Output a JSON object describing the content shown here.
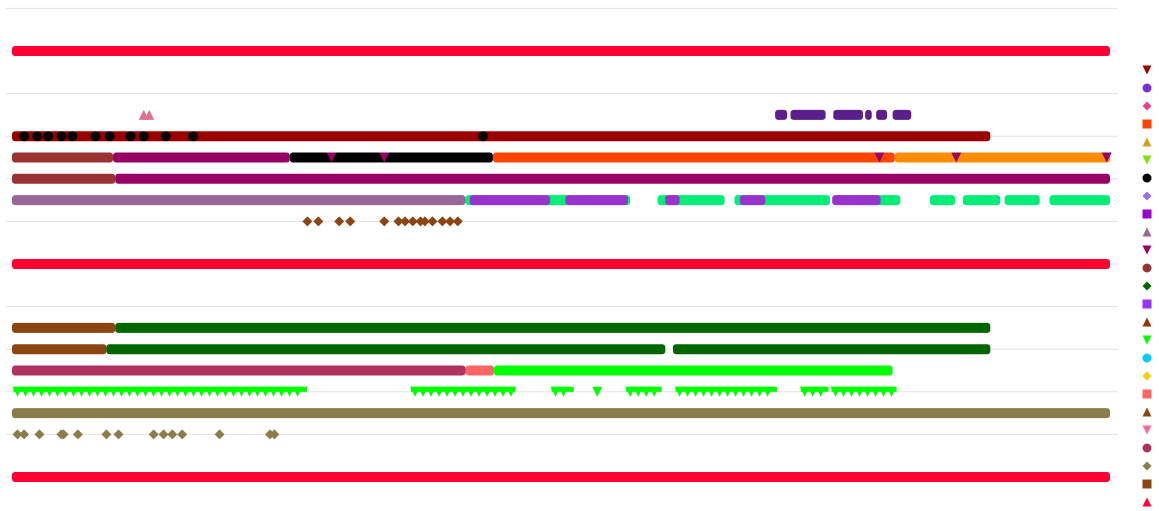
{
  "chart_data": {
    "type": "scatter",
    "title": "",
    "xlabel": "",
    "ylabel": "",
    "xlim": [
      0,
      100
    ],
    "ylim": [
      0,
      11
    ],
    "grid": true,
    "legend_placement": "right",
    "series": [
      {
        "shape": "tri-down",
        "color": "#990000"
      },
      {
        "shape": "circle",
        "color": "#7b2fd6"
      },
      {
        "shape": "diamond",
        "color": "#e8408a"
      },
      {
        "shape": "square",
        "color": "#ff4500"
      },
      {
        "shape": "tri-up",
        "color": "#d4a017"
      },
      {
        "shape": "tri-down",
        "color": "#80e000"
      },
      {
        "shape": "circle",
        "color": "#000000"
      },
      {
        "shape": "diamond",
        "color": "#9a6cf0"
      },
      {
        "shape": "square",
        "color": "#9900cc"
      },
      {
        "shape": "tri-up",
        "color": "#996699"
      },
      {
        "shape": "tri-down",
        "color": "#990066"
      },
      {
        "shape": "circle",
        "color": "#993333"
      },
      {
        "shape": "diamond",
        "color": "#006600"
      },
      {
        "shape": "square",
        "color": "#9933ff"
      },
      {
        "shape": "tri-up",
        "color": "#993300"
      },
      {
        "shape": "tri-down",
        "color": "#00ff00"
      },
      {
        "shape": "circle",
        "color": "#00ccff"
      },
      {
        "shape": "diamond",
        "color": "#ffcc00"
      },
      {
        "shape": "square",
        "color": "#ff6666"
      },
      {
        "shape": "tri-up",
        "color": "#8b4513"
      },
      {
        "shape": "tri-down",
        "color": "#ff6699"
      },
      {
        "shape": "circle",
        "color": "#b03060"
      },
      {
        "shape": "diamond",
        "color": "#8b7d4b"
      },
      {
        "shape": "square",
        "color": "#8b4513"
      },
      {
        "shape": "tri-up",
        "color": "#ff0033"
      }
    ],
    "rows": [
      {
        "y": 10,
        "runs": [
          {
            "s": 24,
            "x0": 0,
            "x1": 100
          }
        ],
        "points": []
      },
      {
        "y": 8.5,
        "runs": [
          {
            "s": 8,
            "x0": 69.5,
            "x1": 70.6,
            "color": "#5b1f8b"
          },
          {
            "s": 8,
            "x0": 70.9,
            "x1": 74.1,
            "color": "#5b1f8b"
          },
          {
            "s": 8,
            "x0": 74.8,
            "x1": 77.5,
            "color": "#5b1f8b"
          },
          {
            "s": 8,
            "x0": 77.7,
            "x1": 78.3,
            "color": "#5b1f8b"
          },
          {
            "s": 8,
            "x0": 78.7,
            "x1": 79.7,
            "color": "#5b1f8b"
          },
          {
            "s": 8,
            "x0": 80.2,
            "x1": 81.9,
            "color": "#5b1f8b"
          }
        ],
        "points": [
          {
            "s": 20,
            "x": 12.0,
            "shape": "tri-up",
            "color": "#e07090"
          },
          {
            "s": 20,
            "x": 12.5,
            "shape": "tri-up",
            "color": "#e07090"
          }
        ]
      },
      {
        "y": 8,
        "runs": [
          {
            "s": 0,
            "x0": 0,
            "x1": 89.1
          }
        ],
        "points": [
          {
            "s": 6,
            "x": 1.1
          },
          {
            "s": 6,
            "x": 2.3
          },
          {
            "s": 6,
            "x": 3.3
          },
          {
            "s": 6,
            "x": 4.5
          },
          {
            "s": 6,
            "x": 5.5
          },
          {
            "s": 6,
            "x": 7.6
          },
          {
            "s": 6,
            "x": 8.9
          },
          {
            "s": 6,
            "x": 10.8
          },
          {
            "s": 6,
            "x": 12.0
          },
          {
            "s": 6,
            "x": 14.0
          },
          {
            "s": 6,
            "x": 16.5
          },
          {
            "s": 6,
            "x": 42.9
          }
        ]
      },
      {
        "y": 7.5,
        "runs": [
          {
            "s": 11,
            "x0": 0,
            "x1": 9.2
          },
          {
            "s": 10,
            "x0": 9.2,
            "x1": 25.3
          },
          {
            "s": 6,
            "x0": 25.3,
            "x1": 43.8
          },
          {
            "s": 3,
            "x0": 43.8,
            "x1": 80.4
          },
          {
            "s": 3,
            "x0": 80.4,
            "x1": 100,
            "color": "#ff8c00"
          }
        ],
        "points": [
          {
            "s": 10,
            "x": 29.1
          },
          {
            "s": 10,
            "x": 33.9
          },
          {
            "s": 10,
            "x": 79.0
          },
          {
            "s": 10,
            "x": 86.0
          },
          {
            "s": 10,
            "x": 99.7
          }
        ]
      },
      {
        "y": 7,
        "runs": [
          {
            "s": 11,
            "x0": 0,
            "x1": 9.4
          },
          {
            "s": 10,
            "x0": 9.4,
            "x1": 100
          }
        ],
        "points": []
      },
      {
        "y": 6.5,
        "runs": [
          {
            "s": 9,
            "x0": 0,
            "x1": 41.3
          },
          {
            "s": 16,
            "x0": 41.3,
            "x1": 56.3,
            "color": "#00ee77"
          },
          {
            "s": 16,
            "x0": 58.8,
            "x1": 64.9,
            "color": "#00ee77"
          },
          {
            "s": 16,
            "x0": 65.8,
            "x1": 74.5,
            "color": "#00ee77"
          },
          {
            "s": 16,
            "x0": 75.0,
            "x1": 80.9,
            "color": "#00ee77"
          },
          {
            "s": 16,
            "x0": 83.6,
            "x1": 85.9,
            "color": "#00ee77"
          },
          {
            "s": 16,
            "x0": 86.6,
            "x1": 90.0,
            "color": "#00ee77"
          },
          {
            "s": 16,
            "x0": 90.4,
            "x1": 93.6,
            "color": "#00ee77"
          },
          {
            "s": 16,
            "x0": 94.5,
            "x1": 100,
            "color": "#00ee77"
          },
          {
            "s": 13,
            "x0": 41.7,
            "x1": 49.0,
            "color": "#9933cc"
          },
          {
            "s": 13,
            "x0": 50.4,
            "x1": 56.1,
            "color": "#9933cc"
          },
          {
            "s": 13,
            "x0": 59.5,
            "x1": 60.8,
            "color": "#9933cc"
          },
          {
            "s": 13,
            "x0": 66.3,
            "x1": 68.6,
            "color": "#9933cc"
          },
          {
            "s": 13,
            "x0": 74.7,
            "x1": 79.1,
            "color": "#9933cc"
          }
        ],
        "points": []
      },
      {
        "y": 6,
        "runs": [],
        "points": [
          {
            "s": 23,
            "x": 26.9,
            "shape": "diamond"
          },
          {
            "s": 23,
            "x": 27.9,
            "shape": "diamond"
          },
          {
            "s": 23,
            "x": 29.8,
            "shape": "diamond"
          },
          {
            "s": 23,
            "x": 30.8,
            "shape": "diamond"
          },
          {
            "s": 23,
            "x": 33.9,
            "shape": "diamond"
          },
          {
            "s": 23,
            "x": 35.2,
            "shape": "diamond"
          },
          {
            "s": 23,
            "x": 35.8,
            "shape": "diamond"
          },
          {
            "s": 23,
            "x": 36.5,
            "shape": "diamond"
          },
          {
            "s": 23,
            "x": 37.2,
            "shape": "diamond"
          },
          {
            "s": 23,
            "x": 37.6,
            "shape": "diamond"
          },
          {
            "s": 23,
            "x": 38.3,
            "shape": "diamond"
          },
          {
            "s": 23,
            "x": 39.2,
            "shape": "diamond"
          },
          {
            "s": 23,
            "x": 39.9,
            "shape": "diamond"
          },
          {
            "s": 23,
            "x": 40.6,
            "shape": "diamond"
          }
        ]
      },
      {
        "y": 5,
        "runs": [
          {
            "s": 24,
            "x0": 0,
            "x1": 100
          }
        ],
        "points": []
      },
      {
        "y": 3.5,
        "runs": [
          {
            "s": 23,
            "x0": 0,
            "x1": 9.4
          },
          {
            "s": 12,
            "x0": 9.4,
            "x1": 89.1
          }
        ],
        "points": []
      },
      {
        "y": 3,
        "runs": [
          {
            "s": 23,
            "x0": 0,
            "x1": 8.6
          },
          {
            "s": 12,
            "x0": 8.6,
            "x1": 59.5
          },
          {
            "s": 12,
            "x0": 60.2,
            "x1": 89.1
          }
        ],
        "points": []
      },
      {
        "y": 2.5,
        "runs": [
          {
            "s": 21,
            "x0": 0,
            "x1": 41.3
          },
          {
            "s": 18,
            "x0": 41.3,
            "x1": 43.9
          },
          {
            "s": 15,
            "x0": 43.9,
            "x1": 80.2
          }
        ],
        "points": []
      },
      {
        "y": 2,
        "runs": [
          {
            "s": 15,
            "x0": 0.5,
            "x1": 26.5,
            "shape": "tri-down"
          },
          {
            "s": 15,
            "x0": 36.7,
            "x1": 45.5,
            "shape": "tri-down"
          },
          {
            "s": 15,
            "x0": 49.5,
            "x1": 50.8,
            "shape": "tri-down"
          },
          {
            "s": 15,
            "x0": 56.3,
            "x1": 58.8,
            "shape": "tri-down"
          },
          {
            "s": 15,
            "x0": 60.8,
            "x1": 69.3,
            "shape": "tri-down"
          },
          {
            "s": 15,
            "x0": 72.2,
            "x1": 74.0,
            "shape": "tri-down"
          },
          {
            "s": 15,
            "x0": 75.0,
            "x1": 80.2,
            "shape": "tri-down"
          }
        ],
        "points": [
          {
            "s": 15,
            "x": 53.3
          }
        ]
      },
      {
        "y": 1.5,
        "runs": [
          {
            "s": 22,
            "x0": 0,
            "x1": 100
          }
        ],
        "points": []
      },
      {
        "y": 1,
        "runs": [],
        "points": [
          {
            "s": 22,
            "x": 0.5
          },
          {
            "s": 22,
            "x": 1.1
          },
          {
            "s": 22,
            "x": 2.5
          },
          {
            "s": 22,
            "x": 4.5
          },
          {
            "s": 22,
            "x": 4.7
          },
          {
            "s": 22,
            "x": 6.0
          },
          {
            "s": 22,
            "x": 8.6
          },
          {
            "s": 22,
            "x": 9.7
          },
          {
            "s": 22,
            "x": 12.9
          },
          {
            "s": 22,
            "x": 13.8
          },
          {
            "s": 22,
            "x": 14.6
          },
          {
            "s": 22,
            "x": 15.5
          },
          {
            "s": 22,
            "x": 18.9
          },
          {
            "s": 22,
            "x": 23.5
          },
          {
            "s": 22,
            "x": 23.9
          }
        ]
      },
      {
        "y": 0,
        "runs": [
          {
            "s": 24,
            "x0": 0,
            "x1": 100
          }
        ],
        "points": []
      }
    ]
  }
}
